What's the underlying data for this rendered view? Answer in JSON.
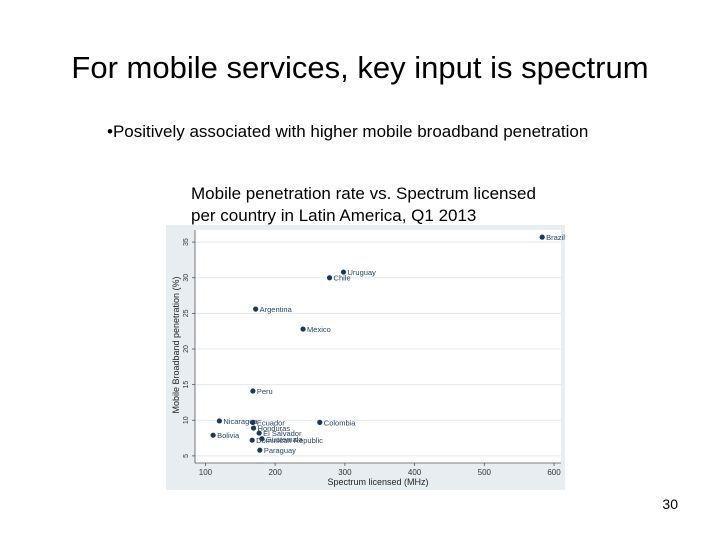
{
  "slide": {
    "title": "For mobile services, key input is spectrum",
    "bullet": "•Positively associated with higher mobile broadband penetration",
    "caption_line1": "Mobile penetration rate vs. Spectrum licensed",
    "caption_line2": "per country in Latin America, Q1 2013",
    "page_number": "30"
  },
  "chart_data": {
    "type": "scatter",
    "title": "",
    "xlabel": "Spectrum licensed (MHz)",
    "ylabel": "Mobile Broadband penetration (%)",
    "xlim": [
      85,
      610
    ],
    "ylim": [
      4,
      36.7
    ],
    "xticks": [
      100,
      200,
      300,
      400,
      500,
      600
    ],
    "yticks": [
      5,
      10,
      15,
      20,
      25,
      30,
      35
    ],
    "grid": true,
    "background": "#e8edf1",
    "point_color": "#1c3a57",
    "points": [
      {
        "label": "Brazil",
        "x": 583,
        "y": 35.7
      },
      {
        "label": "Uruguay",
        "x": 298,
        "y": 30.8
      },
      {
        "label": "Chile",
        "x": 278,
        "y": 30.0
      },
      {
        "label": "Argentina",
        "x": 172,
        "y": 25.6
      },
      {
        "label": "Mexico",
        "x": 240,
        "y": 22.8
      },
      {
        "label": "Peru",
        "x": 168,
        "y": 14.1
      },
      {
        "label": "Colombia",
        "x": 264,
        "y": 9.7
      },
      {
        "label": "Nicaragua",
        "x": 120,
        "y": 9.9
      },
      {
        "label": "Ecuador",
        "x": 168,
        "y": 9.7
      },
      {
        "label": "Honduras",
        "x": 169,
        "y": 8.9
      },
      {
        "label": "El Salvador",
        "x": 177,
        "y": 8.2
      },
      {
        "label": "Guatemala",
        "x": 181,
        "y": 7.4
      },
      {
        "label": "Dominican Republic",
        "x": 167,
        "y": 7.2
      },
      {
        "label": "Bolivia",
        "x": 111,
        "y": 7.9
      },
      {
        "label": "Paraguay",
        "x": 178,
        "y": 5.8
      }
    ]
  }
}
